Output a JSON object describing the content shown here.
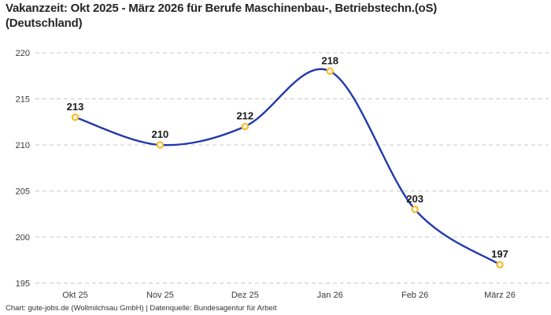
{
  "header": {
    "title_line1": "Vakanzzeit: Okt 2025 - März 2026 für Berufe Maschinenbau-, Betriebstechn.(oS)",
    "title_line2": "(Deutschland)"
  },
  "footer": {
    "credit": "Chart: gute-jobs.de (Wollmilchsau GmbH) | Datenquelle: Bundesagentur für Arbeit"
  },
  "chart_data": {
    "type": "line",
    "title": "Vakanzzeit: Okt 2025 - März 2026 für Berufe Maschinenbau-, Betriebstechn.(oS) (Deutschland)",
    "categories": [
      "Okt 25",
      "Nov 25",
      "Dez 25",
      "Jan 26",
      "Feb 26",
      "März 26"
    ],
    "values": [
      213,
      210,
      212,
      218,
      203,
      197
    ],
    "xlabel": "",
    "ylabel": "",
    "ylim": [
      195,
      220
    ],
    "yticks": [
      195,
      200,
      205,
      210,
      215,
      220
    ],
    "grid": "dashed-horizontal",
    "legend_position": "none",
    "curve": "smooth",
    "colors": {
      "line": "#2239ab",
      "marker_ring": "#f8be2d",
      "marker_fill": "#ffffff",
      "gridline": "#c9c9c9",
      "data_label": "#1a1a1a",
      "axis_text": "#3a3a3a"
    }
  }
}
